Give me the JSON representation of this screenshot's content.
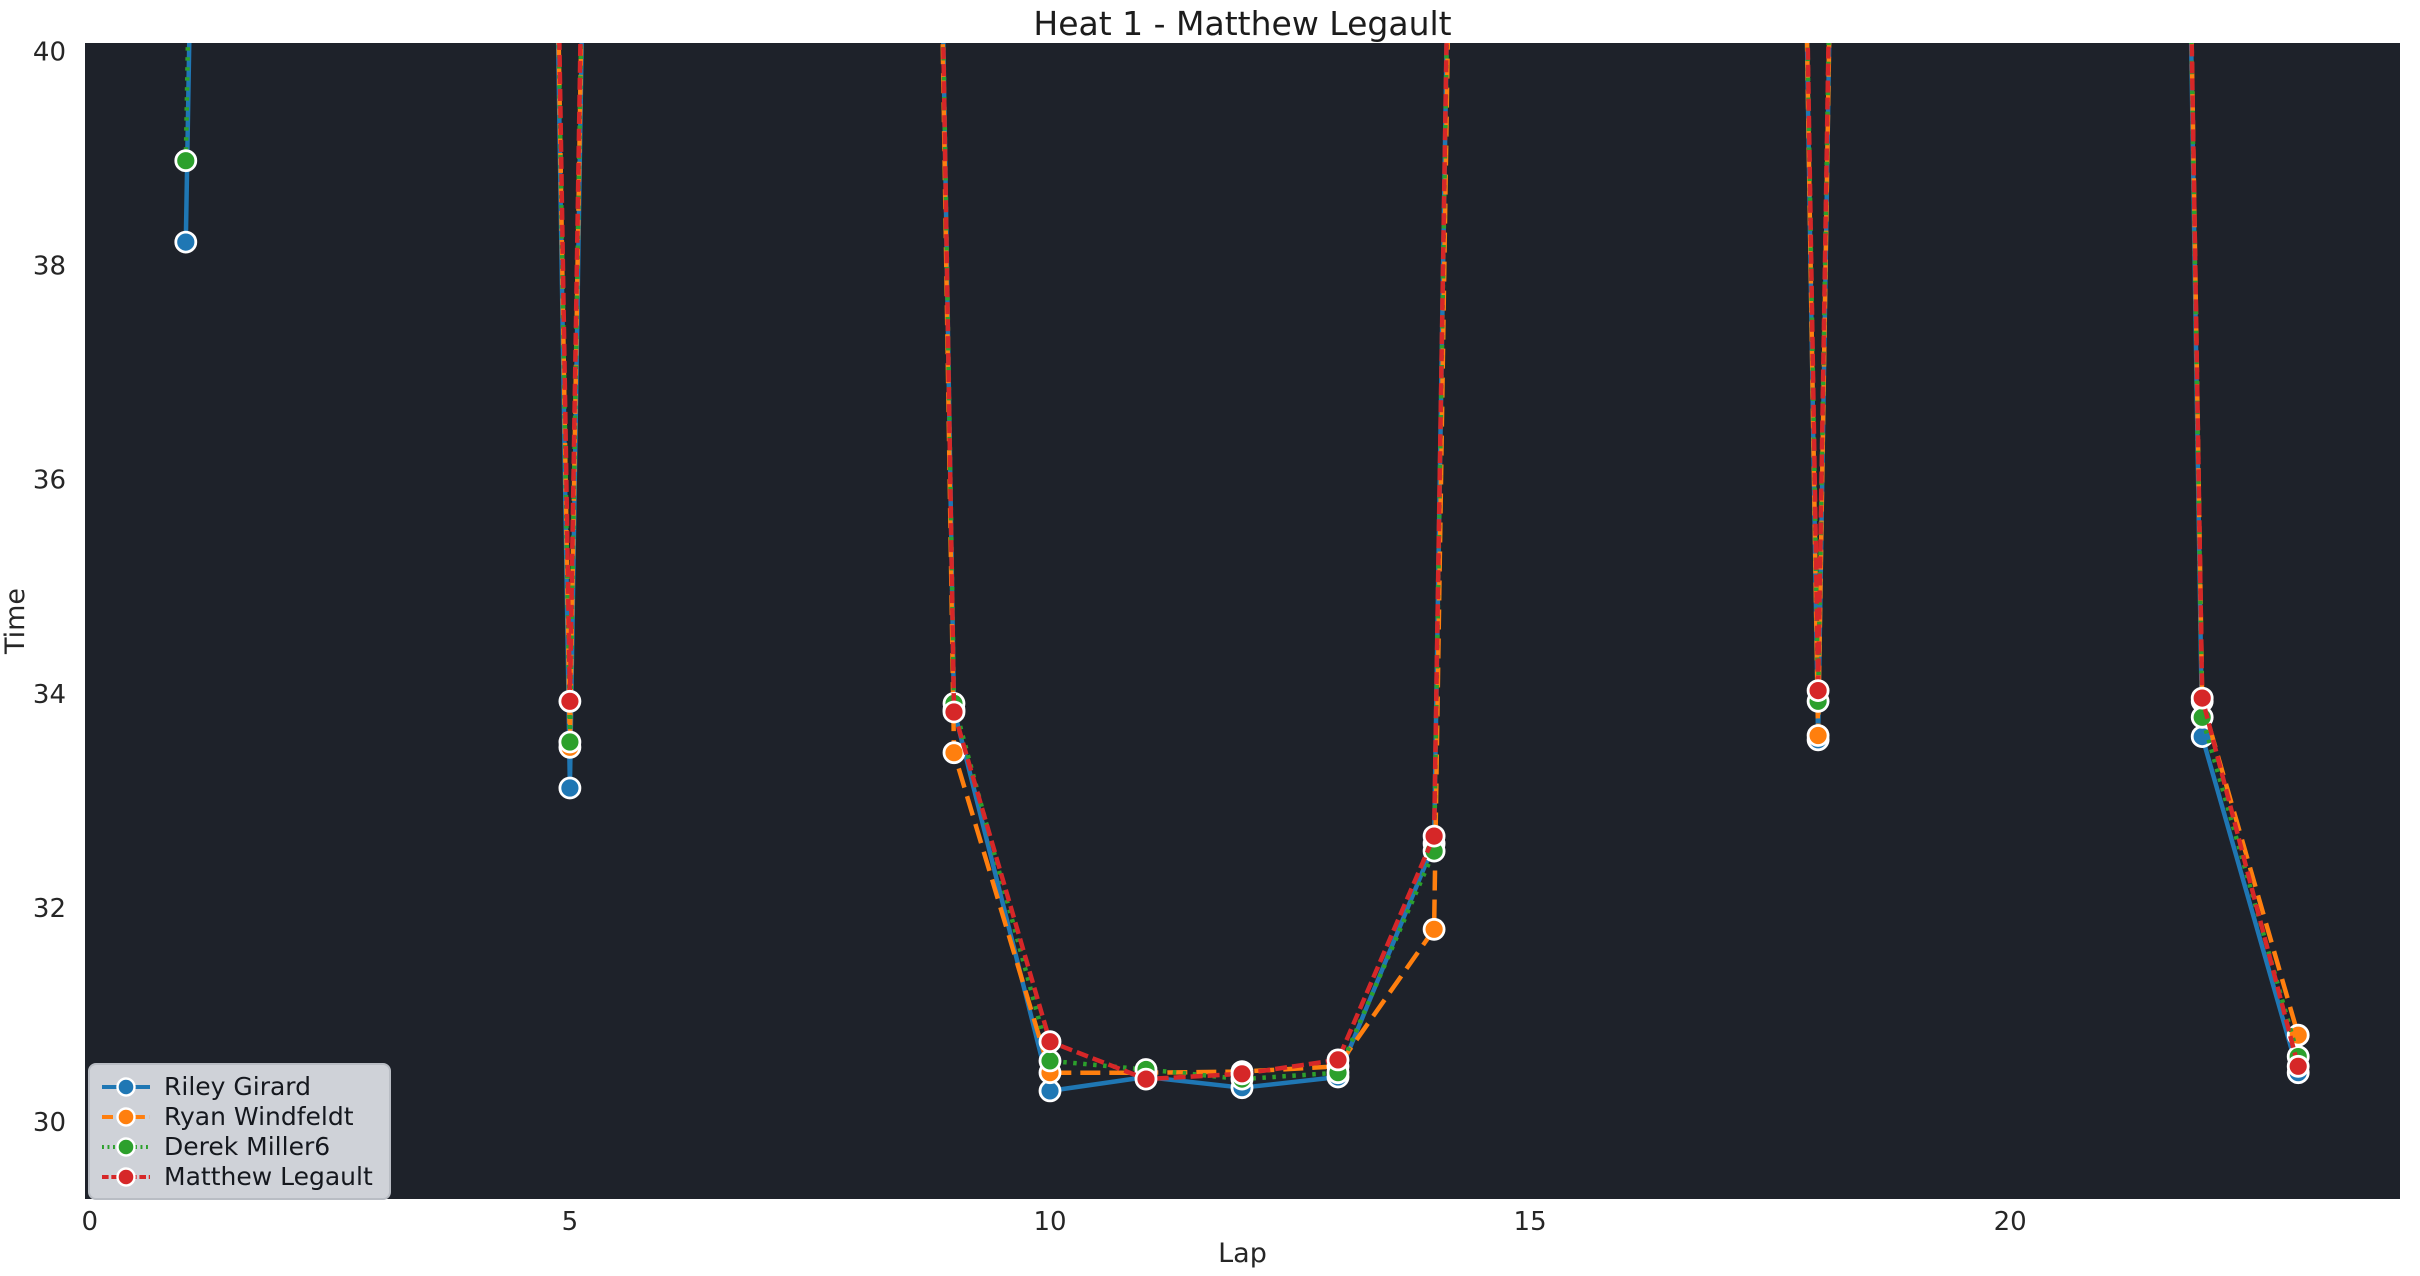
{
  "title": "Heat 1 - Matthew Legault",
  "colors": {
    "figure_bg": "#ffffff",
    "plot_bg": "#1e222a",
    "tick_text": "#262626",
    "title_text": "#1c1c1c",
    "legend_bg": "#dee2e7",
    "legend_border": "#b9bdc4",
    "legend_text": "#15181e",
    "marker_edge": "#ffffff"
  },
  "chart_data": {
    "type": "line",
    "title": "Heat 1 - Matthew Legault",
    "xlabel": "Lap",
    "ylabel": "Time",
    "x_ticks": [
      0,
      5,
      10,
      15,
      20
    ],
    "y_ticks": [
      30,
      32,
      34,
      36,
      38,
      40
    ],
    "xlim": [
      -0.05,
      24.06
    ],
    "ylim": [
      29.28,
      40.08
    ],
    "grid": false,
    "legend_position": "lower left",
    "note": "null values are laps far above the y-axis maximum; lines spike off the top of the plot",
    "offscale_render_value": 90,
    "laps": [
      1,
      2,
      3,
      4,
      5,
      6,
      7,
      8,
      9,
      10,
      11,
      12,
      13,
      14,
      15,
      16,
      17,
      18,
      19,
      20,
      21,
      22,
      23
    ],
    "series": [
      {
        "name": "Riley Girard",
        "color": "#1f77b4",
        "line_style": "solid",
        "marker": "o",
        "values": [
          38.22,
          null,
          null,
          null,
          33.12,
          null,
          null,
          null,
          33.85,
          30.29,
          30.42,
          30.32,
          30.42,
          32.6,
          null,
          null,
          null,
          33.57,
          null,
          null,
          null,
          33.6,
          30.46
        ]
      },
      {
        "name": "Ryan Windfeldt",
        "color": "#ff7f0e",
        "line_style": "dashed",
        "marker": "o",
        "values": [
          null,
          null,
          null,
          null,
          33.5,
          null,
          null,
          null,
          33.45,
          30.46,
          30.46,
          30.47,
          30.52,
          31.8,
          null,
          null,
          null,
          33.61,
          null,
          null,
          null,
          33.93,
          30.81
        ]
      },
      {
        "name": "Derek Miller6",
        "color": "#2ca02c",
        "line_style": "dotted",
        "marker": "o",
        "values": [
          38.98,
          null,
          null,
          null,
          33.55,
          null,
          null,
          null,
          33.91,
          30.57,
          30.49,
          30.4,
          30.46,
          32.53,
          null,
          null,
          null,
          33.93,
          null,
          null,
          null,
          33.78,
          30.61
        ]
      },
      {
        "name": "Matthew Legault",
        "color": "#d62728",
        "line_style": "dashed-short",
        "marker": "o",
        "values": [
          null,
          null,
          null,
          null,
          33.93,
          null,
          null,
          null,
          33.83,
          30.75,
          30.4,
          30.45,
          30.58,
          32.67,
          null,
          null,
          null,
          34.03,
          null,
          null,
          null,
          33.96,
          30.52
        ]
      }
    ]
  }
}
